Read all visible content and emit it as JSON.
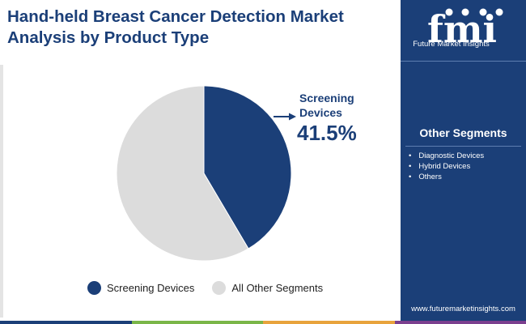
{
  "header": {
    "title_line1": "Hand-held Breast Cancer Detection Market",
    "title_line2": "Analysis by Product Type"
  },
  "chart_data": {
    "type": "pie",
    "title": "Hand-held Breast Cancer Detection Market Analysis by Product Type",
    "slices": [
      {
        "label": "Screening Devices",
        "value": 41.5,
        "color": "#1b3f78"
      },
      {
        "label": "All Other Segments",
        "value": 58.5,
        "color": "#dcdcdc"
      }
    ],
    "callout": {
      "label_line1": "Screening",
      "label_line2": "Devices",
      "value_text": "41.5%"
    },
    "legend": [
      {
        "label": "Screening Devices",
        "color": "#1b3f78"
      },
      {
        "label": "All Other Segments",
        "color": "#dcdcdc"
      }
    ]
  },
  "sidebar": {
    "logo_text": "fmi",
    "logo_tagline": "Future Market Insights",
    "segments_title": "Other Segments",
    "segments": [
      "Diagnostic Devices",
      "Hybrid Devices",
      "Others"
    ],
    "website": "www.futuremarketinsights.com"
  },
  "colors": {
    "brand": "#1b3f78",
    "bottom_bar": [
      "#1b3f78",
      "#7ab648",
      "#e8a33c",
      "#7b3f8f"
    ]
  }
}
